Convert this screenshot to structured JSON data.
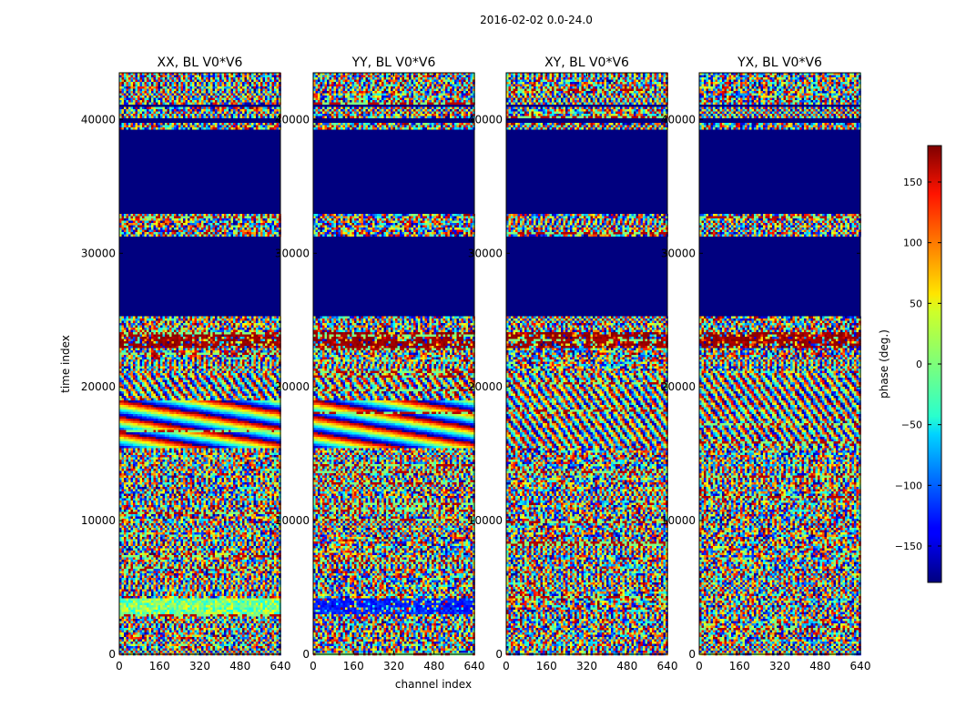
{
  "suptitle": "2016-02-02 0.0-24.0",
  "chart_data": {
    "type": "heatmap",
    "xlabel": "channel index",
    "ylabel": "time index",
    "xlim": [
      0,
      640
    ],
    "ylim": [
      0,
      43500
    ],
    "x_ticks": [
      0,
      160,
      320,
      480,
      640
    ],
    "x_tick_labels": [
      "0",
      "160",
      "320",
      "480",
      "640"
    ],
    "y_ticks": [
      0,
      10000,
      20000,
      30000,
      40000
    ],
    "y_tick_labels": [
      "0",
      "10000",
      "20000",
      "30000",
      "40000"
    ],
    "panels": [
      {
        "title": "XX, BL V0*V6",
        "polarization": "XX"
      },
      {
        "title": "YY, BL V0*V6",
        "polarization": "YY"
      },
      {
        "title": "XY, BL V0*V6",
        "polarization": "XY"
      },
      {
        "title": "YX, BL V0*V6",
        "polarization": "YX"
      }
    ],
    "flagged_time_ranges": [
      [
        25300,
        31300
      ],
      [
        33000,
        39300
      ],
      [
        39700,
        40100
      ],
      [
        40900,
        41100
      ]
    ],
    "colorbar": {
      "label": "phase (deg.)",
      "vmin": -180,
      "vmax": 180,
      "ticks": [
        150,
        100,
        50,
        0,
        -50,
        -100,
        -150
      ],
      "tick_labels": [
        "150",
        "100",
        "50",
        "0",
        "−50",
        "−100",
        "−150"
      ],
      "colormap": "jet"
    }
  }
}
